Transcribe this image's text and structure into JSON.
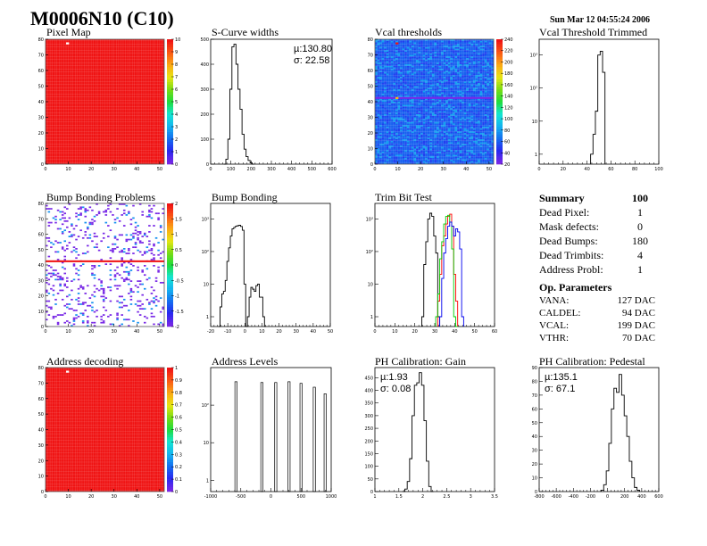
{
  "header": {
    "title": "M0006N10 (C10)",
    "timestamp": "Sun Mar 12 04:55:24 2006"
  },
  "summary": {
    "title": "Summary",
    "total": "100",
    "rows": [
      {
        "label": "Dead Pixel:",
        "value": "1"
      },
      {
        "label": "Mask defects:",
        "value": "0"
      },
      {
        "label": "Dead Bumps:",
        "value": "180"
      },
      {
        "label": "Dead Trimbits:",
        "value": "4"
      },
      {
        "label": "Address Probl:",
        "value": "1"
      }
    ],
    "op_title": "Op. Parameters",
    "op_rows": [
      {
        "label": "VANA:",
        "value": "127 DAC"
      },
      {
        "label": "CALDEL:",
        "value": "94 DAC"
      },
      {
        "label": "VCAL:",
        "value": "199 DAC"
      },
      {
        "label": "VTHR:",
        "value": "70 DAC"
      }
    ]
  },
  "colors": {
    "map_red": "#f01010",
    "map_blue": "#2b6ff0",
    "series_black": "#000000",
    "series_red": "#ff0000",
    "series_green": "#00cc00",
    "series_blue": "#0000ee"
  },
  "chart_data": [
    {
      "id": "pixel-map",
      "type": "heatmap",
      "title": "Pixel Map",
      "xlim": [
        0,
        52
      ],
      "ylim": [
        0,
        80
      ],
      "xticks": [
        "0",
        "10",
        "20",
        "30",
        "40",
        "50"
      ],
      "yticks": [
        "0",
        "10",
        "20",
        "30",
        "40",
        "50",
        "60",
        "70",
        "80"
      ],
      "zlim": [
        0,
        10
      ],
      "zticks": [
        "0",
        "1",
        "2",
        "3",
        "4",
        "5",
        "6",
        "7",
        "8",
        "9",
        "10"
      ],
      "fill_value": 10,
      "special_cells": [
        {
          "x": 9,
          "y": 77,
          "value": 0
        }
      ]
    },
    {
      "id": "s-curve-widths",
      "type": "bar",
      "title": "S-Curve widths",
      "xlim": [
        0,
        600
      ],
      "ylim": [
        0,
        500
      ],
      "xticks": [
        "0",
        "100",
        "200",
        "300",
        "400",
        "500",
        "600"
      ],
      "yticks": [
        "0",
        "100",
        "200",
        "300",
        "400",
        "500"
      ],
      "x": [
        70,
        80,
        90,
        100,
        110,
        120,
        130,
        140,
        150,
        160,
        170,
        180,
        190,
        200,
        210
      ],
      "values": [
        0,
        20,
        100,
        300,
        470,
        480,
        400,
        300,
        220,
        120,
        60,
        30,
        15,
        5,
        0
      ],
      "stats": {
        "mean": "µ:130.80",
        "sigma": "σ: 22.58"
      }
    },
    {
      "id": "vcal-thresholds",
      "type": "heatmap",
      "title": "Vcal thresholds",
      "xlim": [
        0,
        52
      ],
      "ylim": [
        0,
        80
      ],
      "xticks": [
        "0",
        "10",
        "20",
        "30",
        "40",
        "50"
      ],
      "yticks": [
        "0",
        "10",
        "20",
        "30",
        "40",
        "50",
        "60",
        "70",
        "80"
      ],
      "zlim": [
        20,
        240
      ],
      "zticks": [
        "20",
        "40",
        "60",
        "80",
        "100",
        "120",
        "140",
        "160",
        "180",
        "200",
        "220",
        "240"
      ],
      "fill_value": 60,
      "special_rows": [
        {
          "y": 42,
          "value": 20
        }
      ],
      "special_cells": [
        {
          "x": 9,
          "y": 77,
          "value": 240
        },
        {
          "x": 9,
          "y": 42,
          "value": 190
        }
      ]
    },
    {
      "id": "vcal-threshold-trimmed",
      "type": "bar",
      "title": "Vcal Threshold Trimmed",
      "log_y": true,
      "xlim": [
        0,
        100
      ],
      "ylim": [
        0.5,
        3000
      ],
      "xticks": [
        "0",
        "20",
        "40",
        "60",
        "80",
        "100"
      ],
      "yticks": [
        "1",
        "10",
        "10²",
        "10³"
      ],
      "x": [
        44,
        46,
        48,
        50,
        52,
        54
      ],
      "values": [
        1,
        4,
        20,
        1000,
        1300,
        300
      ]
    },
    {
      "id": "bump-bonding-problems",
      "type": "heatmap",
      "title": "Bump Bonding Problems",
      "xlim": [
        0,
        52
      ],
      "ylim": [
        0,
        80
      ],
      "xticks": [
        "0",
        "10",
        "20",
        "30",
        "40",
        "50"
      ],
      "yticks": [
        "0",
        "10",
        "20",
        "30",
        "40",
        "50",
        "60",
        "70",
        "80"
      ],
      "zlim": [
        -2,
        2
      ],
      "zticks": [
        "-2",
        "-1.5",
        "-1",
        "-0.5",
        "0",
        "0.5",
        "1",
        "1.5",
        "2"
      ],
      "special_rows": [
        {
          "y": 42,
          "value": 2
        }
      ]
    },
    {
      "id": "bump-bonding",
      "type": "bar",
      "title": "Bump Bonding",
      "log_y": true,
      "xlim": [
        -20,
        50
      ],
      "ylim": [
        0.5,
        3000
      ],
      "xticks": [
        "-20",
        "-10",
        "0",
        "10",
        "20",
        "30",
        "40",
        "50"
      ],
      "yticks": [
        "1",
        "10",
        "10²",
        "10³"
      ],
      "x": [
        -15,
        -14,
        -13,
        -12,
        -11,
        -10,
        -9,
        -8,
        -7,
        -6,
        -5,
        -4,
        -3,
        -2,
        -1,
        0,
        1,
        2,
        3,
        4,
        5,
        6,
        7,
        8,
        9,
        10,
        11,
        12
      ],
      "values": [
        0,
        2,
        5,
        6,
        13,
        50,
        130,
        300,
        500,
        550,
        600,
        620,
        640,
        590,
        450,
        10,
        0,
        1,
        4,
        8,
        7,
        6,
        9,
        10,
        4,
        4,
        1,
        0
      ]
    },
    {
      "id": "trim-bit-test",
      "type": "line",
      "title": "Trim Bit Test",
      "log_y": true,
      "xlim": [
        0,
        60
      ],
      "ylim": [
        0.5,
        3000
      ],
      "xticks": [
        "0",
        "10",
        "20",
        "30",
        "40",
        "50",
        "60"
      ],
      "yticks": [
        "1",
        "10",
        "10²",
        "10³"
      ],
      "series": [
        {
          "name": "trim-bit-0",
          "color": "#000000",
          "x": [
            24,
            25,
            26,
            27,
            28,
            29,
            30,
            31,
            32
          ],
          "values": [
            1,
            40,
            200,
            1000,
            1500,
            1200,
            300,
            90,
            1
          ]
        },
        {
          "name": "trim-bit-1",
          "color": "#ff0000",
          "x": [
            32,
            33,
            34,
            35,
            36,
            37,
            38,
            39,
            40,
            41
          ],
          "values": [
            3,
            20,
            150,
            300,
            700,
            1200,
            1400,
            600,
            20,
            3
          ]
        },
        {
          "name": "trim-bit-2",
          "color": "#00cc00",
          "x": [
            31,
            32,
            33,
            34,
            35,
            36,
            37,
            38,
            39,
            40,
            41
          ],
          "values": [
            1,
            5,
            60,
            200,
            700,
            1200,
            1300,
            800,
            120,
            1,
            0.5
          ]
        },
        {
          "name": "trim-bit-3",
          "color": "#0000ee",
          "x": [
            33,
            34,
            35,
            36,
            37,
            38,
            39,
            40,
            41,
            42,
            43,
            44
          ],
          "values": [
            1,
            15,
            90,
            250,
            600,
            800,
            600,
            300,
            500,
            400,
            120,
            1
          ]
        }
      ]
    },
    {
      "id": "address-decoding",
      "type": "heatmap",
      "title": "Address decoding",
      "xlim": [
        0,
        52
      ],
      "ylim": [
        0,
        80
      ],
      "xticks": [
        "0",
        "10",
        "20",
        "30",
        "40",
        "50"
      ],
      "yticks": [
        "0",
        "10",
        "20",
        "30",
        "40",
        "50",
        "60",
        "70",
        "80"
      ],
      "zlim": [
        0,
        1
      ],
      "zticks": [
        "0",
        "0.1",
        "0.2",
        "0.3",
        "0.4",
        "0.5",
        "0.6",
        "0.7",
        "0.8",
        "0.9",
        "1"
      ],
      "fill_value": 1,
      "special_cells": [
        {
          "x": 9,
          "y": 77,
          "value": 0
        }
      ]
    },
    {
      "id": "address-levels",
      "type": "bar",
      "title": "Address Levels",
      "log_y": true,
      "xlim": [
        -1000,
        1000
      ],
      "ylim": [
        0.5,
        1000
      ],
      "xticks": [
        "-1000",
        "-500",
        "0",
        "500",
        "1000"
      ],
      "yticks": [
        "1",
        "10",
        "10²"
      ],
      "x": [
        -580,
        -150,
        80,
        300,
        500,
        720,
        900
      ],
      "values": [
        420,
        400,
        400,
        420,
        380,
        300,
        200
      ]
    },
    {
      "id": "ph-calibration-gain",
      "type": "bar",
      "title": "PH Calibration: Gain",
      "xlim": [
        1,
        3.5
      ],
      "ylim": [
        0,
        490
      ],
      "xticks": [
        "1",
        "1.5",
        "2",
        "2.5",
        "3",
        "3.5"
      ],
      "yticks": [
        "0",
        "50",
        "100",
        "150",
        "200",
        "250",
        "300",
        "350",
        "400",
        "450"
      ],
      "x": [
        1.6,
        1.65,
        1.7,
        1.75,
        1.8,
        1.85,
        1.9,
        1.95,
        2.0,
        2.05,
        2.1,
        2.15,
        2.2
      ],
      "values": [
        0,
        10,
        40,
        130,
        300,
        420,
        430,
        470,
        420,
        280,
        120,
        20,
        0
      ],
      "stats": {
        "mean": "µ:1.93",
        "sigma": "σ: 0.08"
      }
    },
    {
      "id": "ph-calibration-pedestal",
      "type": "bar",
      "title": "PH Calibration: Pedestal",
      "xlim": [
        -800,
        600
      ],
      "ylim": [
        0,
        90
      ],
      "xticks": [
        "-800",
        "-600",
        "-400",
        "-200",
        "0",
        "200",
        "400",
        "600"
      ],
      "yticks": [
        "0",
        "10",
        "20",
        "30",
        "40",
        "50",
        "60",
        "70",
        "80",
        "90"
      ],
      "x": [
        -60,
        -30,
        0,
        30,
        60,
        90,
        120,
        150,
        180,
        210,
        240,
        270,
        300,
        330,
        360
      ],
      "values": [
        1,
        5,
        15,
        35,
        60,
        75,
        72,
        85,
        70,
        55,
        40,
        22,
        10,
        3,
        1
      ],
      "stats": {
        "mean": "µ:135.1",
        "sigma": "σ: 67.1"
      }
    }
  ]
}
